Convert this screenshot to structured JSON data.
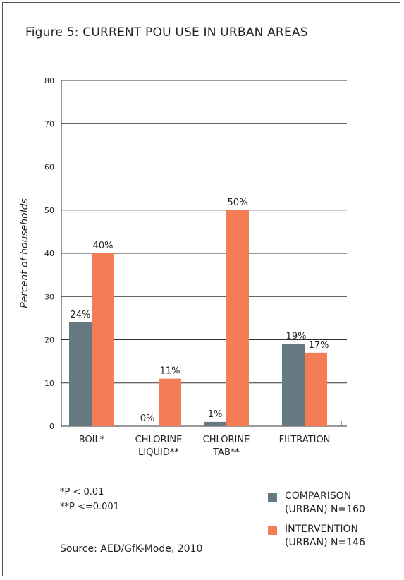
{
  "title": "Figure 5: CURRENT POU USE IN URBAN AREAS",
  "footnotes": [
    "*P < 0.01",
    "**P <=0.001"
  ],
  "source": "Source: AED/GfK-Mode, 2010",
  "legend": [
    {
      "line1": "COMPARISON",
      "line2": "(URBAN) N=160",
      "color": "#647a80"
    },
    {
      "line1": "INTERVENTION",
      "line2": "(URBAN) N=146",
      "color": "#f47d55"
    }
  ],
  "chart_data": {
    "type": "bar",
    "title": "Figure 5: CURRENT POU USE IN URBAN AREAS",
    "ylabel": "Percent of households",
    "xlabel": "",
    "ylim": [
      0,
      80
    ],
    "yticks": [
      0,
      10,
      20,
      30,
      40,
      50,
      60,
      70,
      80
    ],
    "grid": true,
    "legend_position": "bottom-right",
    "categories": [
      [
        "BOIL*"
      ],
      [
        "CHLORINE",
        "LIQUID**"
      ],
      [
        "CHLORINE",
        "TAB**"
      ],
      [
        "FILTRATION"
      ]
    ],
    "series": [
      {
        "name": "COMPARISON (URBAN) N=160",
        "values": [
          24,
          0,
          1,
          19
        ],
        "labels": [
          "24%",
          "0%",
          "1%",
          "19%"
        ],
        "color": "#647a80"
      },
      {
        "name": "INTERVENTION (URBAN) N=146",
        "values": [
          40,
          11,
          50,
          17
        ],
        "labels": [
          "40%",
          "11%",
          "50%",
          "17%"
        ],
        "color": "#f47d55"
      }
    ]
  }
}
